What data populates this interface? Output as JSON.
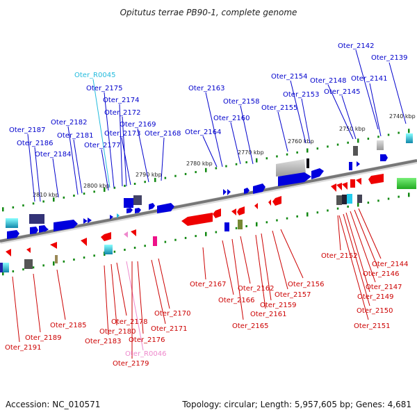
{
  "title": "Opitutus terrae PB90-1, complete genome",
  "footer": {
    "accession": "Accession: NC_010571",
    "summary": "Topology: circular; Length: 5,957,605 bp; Genes: 4,681"
  },
  "colors": {
    "forward": "#0000dd",
    "reverse": "#ee0000",
    "forward_rna": "#22bbdd",
    "reverse_rna": "#ee88cc",
    "backbone": "#777777",
    "tick": "#118811"
  },
  "kbp_labels": [
    "2740 kbp",
    "2750 kbp",
    "2760 kbp",
    "2770 kbp",
    "2780 kbp",
    "2790 kbp",
    "2800 kbp",
    "2810 kbp"
  ],
  "forward_labels": [
    "Oter_2142",
    "Oter_2139",
    "Oter_2141",
    "Oter_2148",
    "Oter_2145",
    "Oter_2154",
    "Oter_2153",
    "Oter_2155",
    "Oter_2158",
    "Oter_2160",
    "Oter_2163",
    "Oter_2164",
    "Oter_R0045",
    "Oter_2175",
    "Oter_2174",
    "Oter_2172",
    "Oter_2169",
    "Oter_2173",
    "Oter_2168",
    "Oter_2182",
    "Oter_2181",
    "Oter_2177",
    "Oter_2187",
    "Oter_2186",
    "Oter_2184"
  ],
  "reverse_labels": [
    "Oter_2152",
    "Oter_2144",
    "Oter_2146",
    "Oter_2147",
    "Oter_2149",
    "Oter_2150",
    "Oter_2151",
    "Oter_2156",
    "Oter_2157",
    "Oter_2159",
    "Oter_2161",
    "Oter_2162",
    "Oter_2165",
    "Oter_2166",
    "Oter_2167",
    "Oter_2170",
    "Oter_2171",
    "Oter_2176",
    "Oter_2178",
    "Oter_2180",
    "Oter_2183",
    "Oter_2185",
    "Oter_2189",
    "Oter_2191",
    "Oter_R0046",
    "Oter_2179"
  ]
}
